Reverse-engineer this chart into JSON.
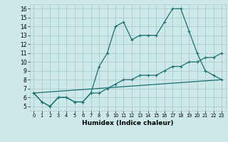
{
  "xlabel": "Humidex (Indice chaleur)",
  "background_color": "#cce8e8",
  "grid_color": "#aacccc",
  "line_color": "#1a7070",
  "xlim": [
    -0.5,
    23.5
  ],
  "ylim": [
    4.5,
    16.5
  ],
  "xticks": [
    0,
    1,
    2,
    3,
    4,
    5,
    6,
    7,
    8,
    9,
    10,
    11,
    12,
    13,
    14,
    15,
    16,
    17,
    18,
    19,
    20,
    21,
    22,
    23
  ],
  "yticks": [
    5,
    6,
    7,
    8,
    9,
    10,
    11,
    12,
    13,
    14,
    15,
    16
  ],
  "line1_x": [
    0,
    1,
    2,
    3,
    4,
    5,
    6,
    7,
    8,
    9,
    10,
    11,
    12,
    13,
    14,
    15,
    16,
    17,
    18,
    19,
    20,
    21,
    22,
    23
  ],
  "line1_y": [
    6.5,
    5.5,
    5.0,
    6.0,
    6.0,
    5.5,
    5.5,
    6.5,
    9.5,
    11.0,
    14.0,
    14.5,
    12.5,
    13.0,
    13.0,
    13.0,
    14.5,
    16.0,
    16.0,
    13.5,
    11.0,
    9.0,
    8.5,
    8.0
  ],
  "line2_x": [
    0,
    1,
    2,
    3,
    4,
    5,
    6,
    7,
    8,
    9,
    10,
    11,
    12,
    13,
    14,
    15,
    16,
    17,
    18,
    19,
    20,
    21,
    22,
    23
  ],
  "line2_y": [
    6.5,
    5.5,
    5.0,
    6.0,
    6.0,
    5.5,
    5.5,
    6.5,
    6.5,
    7.0,
    7.5,
    8.0,
    8.0,
    8.5,
    8.5,
    8.5,
    9.0,
    9.5,
    9.5,
    10.0,
    10.0,
    10.5,
    10.5,
    11.0
  ],
  "line3_x": [
    0,
    23
  ],
  "line3_y": [
    6.5,
    8.0
  ]
}
